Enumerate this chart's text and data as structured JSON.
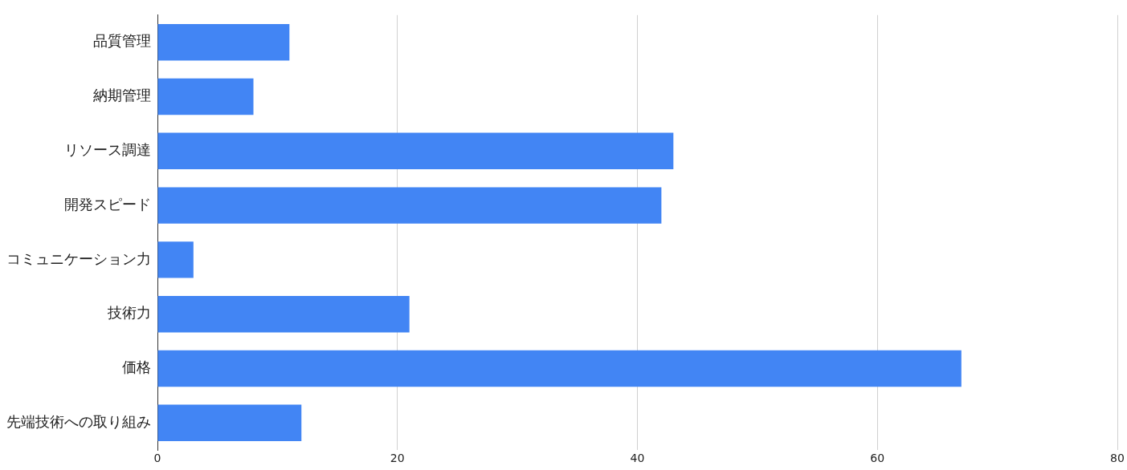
{
  "chart_data": {
    "type": "bar",
    "orientation": "horizontal",
    "categories": [
      "品質管理",
      "納期管理",
      "リソース調達",
      "開発スピード",
      "コミュニケーション力",
      "技術力",
      "価格",
      "先端技術への取り組み"
    ],
    "values": [
      11,
      8,
      43,
      42,
      3,
      21,
      67,
      12
    ],
    "color": "#4285f4",
    "xlim": [
      0,
      80
    ],
    "xticks": [
      0,
      20,
      40,
      60,
      80
    ],
    "grid": "x"
  }
}
